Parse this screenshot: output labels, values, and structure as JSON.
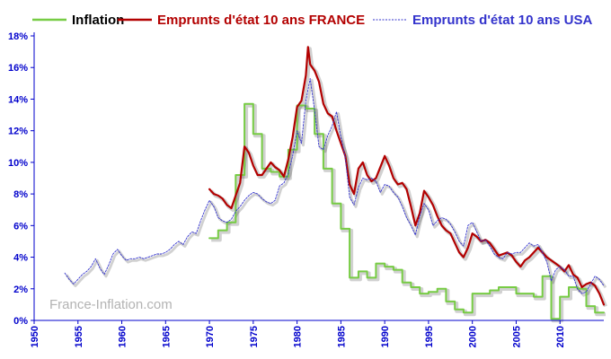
{
  "watermark": "France-Inflation.com",
  "chart_data": {
    "type": "line",
    "title": "",
    "xlabel": "",
    "ylabel": "",
    "xlim": [
      1950,
      2015
    ],
    "ylim": [
      0,
      18
    ],
    "grid": false,
    "legend_position": "top",
    "y_ticks": [
      0,
      2,
      4,
      6,
      8,
      10,
      12,
      14,
      16,
      18
    ],
    "y_tick_labels": [
      "0%",
      "2%",
      "4%",
      "6%",
      "8%",
      "10%",
      "12%",
      "14%",
      "16%",
      "18%"
    ],
    "x_ticks": [
      1950,
      1955,
      1960,
      1965,
      1970,
      1975,
      1980,
      1985,
      1990,
      1995,
      2000,
      2005,
      2010
    ],
    "x_tick_labels": [
      "1950",
      "1955",
      "1960",
      "1965",
      "1970",
      "1975",
      "1980",
      "1985",
      "1990",
      "1995",
      "2000",
      "2005",
      "2010"
    ],
    "colors": {
      "Inflation": "#77cc44",
      "Emprunts d'état 10 ans FRANCE": "#b30000",
      "Emprunts d'état 10 ans USA": "#3333cc",
      "axis": "#0000cc"
    },
    "series": [
      {
        "name": "Inflation",
        "style": "step",
        "x": [
          1970,
          1971,
          1972,
          1973,
          1974,
          1975,
          1976,
          1977,
          1978,
          1979,
          1980,
          1981,
          1982,
          1983,
          1984,
          1985,
          1986,
          1987,
          1988,
          1989,
          1990,
          1991,
          1992,
          1993,
          1994,
          1995,
          1996,
          1997,
          1998,
          1999,
          2000,
          2001,
          2002,
          2003,
          2004,
          2005,
          2006,
          2007,
          2008,
          2009,
          2010,
          2011,
          2012,
          2013,
          2014,
          2015
        ],
        "values": [
          5.2,
          5.7,
          6.2,
          9.2,
          13.7,
          11.8,
          9.6,
          9.4,
          9.1,
          10.8,
          13.6,
          13.4,
          11.8,
          9.6,
          7.4,
          5.8,
          2.7,
          3.1,
          2.7,
          3.6,
          3.4,
          3.2,
          2.4,
          2.1,
          1.7,
          1.8,
          2.0,
          1.2,
          0.7,
          0.5,
          1.7,
          1.7,
          1.9,
          2.1,
          2.1,
          1.7,
          1.7,
          1.5,
          2.8,
          0.1,
          1.5,
          2.1,
          2.0,
          0.9,
          0.5,
          0.5
        ]
      },
      {
        "name": "Emprunts d'état 10 ans FRANCE",
        "style": "line",
        "x": [
          1970,
          1970.5,
          1971,
          1971.5,
          1972,
          1972.5,
          1973,
          1973.5,
          1974,
          1974.5,
          1975,
          1975.5,
          1976,
          1976.5,
          1977,
          1977.5,
          1978,
          1978.5,
          1979,
          1979.5,
          1980,
          1980.5,
          1981,
          1981.25,
          1981.5,
          1982,
          1982.5,
          1983,
          1983.5,
          1984,
          1984.5,
          1985,
          1985.5,
          1986,
          1986.5,
          1987,
          1987.5,
          1988,
          1988.5,
          1989,
          1989.5,
          1990,
          1990.5,
          1991,
          1991.5,
          1992,
          1992.5,
          1993,
          1993.5,
          1994,
          1994.5,
          1995,
          1995.5,
          1996,
          1996.5,
          1997,
          1997.5,
          1998,
          1998.5,
          1999,
          1999.5,
          2000,
          2000.5,
          2001,
          2001.5,
          2002,
          2002.5,
          2003,
          2003.5,
          2004,
          2004.5,
          2005,
          2005.5,
          2006,
          2006.5,
          2007,
          2007.5,
          2008,
          2008.5,
          2009,
          2009.5,
          2010,
          2010.5,
          2011,
          2011.5,
          2012,
          2012.5,
          2013,
          2013.5,
          2014,
          2014.5,
          2015
        ],
        "values": [
          8.3,
          8.0,
          7.9,
          7.7,
          7.3,
          7.1,
          7.9,
          8.7,
          11.0,
          10.6,
          9.8,
          9.2,
          9.2,
          9.6,
          10.0,
          9.7,
          9.5,
          9.1,
          10.2,
          11.6,
          13.5,
          13.9,
          15.5,
          17.3,
          16.2,
          15.8,
          15.1,
          13.7,
          13.1,
          12.9,
          12.0,
          11.2,
          10.4,
          8.6,
          8.0,
          9.6,
          10.0,
          9.2,
          8.8,
          9.0,
          9.7,
          10.4,
          9.8,
          9.0,
          8.6,
          8.7,
          8.3,
          7.2,
          6.0,
          6.8,
          8.2,
          7.8,
          7.3,
          6.6,
          6.0,
          5.7,
          5.5,
          4.9,
          4.3,
          4.0,
          4.6,
          5.5,
          5.3,
          5.0,
          5.1,
          4.9,
          4.5,
          4.1,
          4.2,
          4.3,
          4.1,
          3.7,
          3.4,
          3.8,
          4.0,
          4.3,
          4.6,
          4.3,
          4.0,
          3.8,
          3.6,
          3.4,
          3.1,
          3.5,
          2.9,
          2.7,
          2.1,
          2.3,
          2.4,
          2.2,
          1.7,
          1.0
        ]
      },
      {
        "name": "Emprunts d'état 10 ans USA",
        "style": "dashed",
        "x": [
          1953.5,
          1954,
          1954.5,
          1955,
          1955.5,
          1956,
          1956.5,
          1957,
          1957.5,
          1958,
          1958.5,
          1959,
          1959.5,
          1960,
          1960.5,
          1961,
          1961.5,
          1962,
          1962.5,
          1963,
          1963.5,
          1964,
          1964.5,
          1965,
          1965.5,
          1966,
          1966.5,
          1967,
          1967.5,
          1968,
          1968.5,
          1969,
          1969.5,
          1970,
          1970.5,
          1971,
          1971.5,
          1972,
          1972.5,
          1973,
          1973.5,
          1974,
          1974.5,
          1975,
          1975.5,
          1976,
          1976.5,
          1977,
          1977.5,
          1978,
          1978.5,
          1979,
          1979.5,
          1980,
          1980.5,
          1981,
          1981.5,
          1982,
          1982.5,
          1983,
          1983.5,
          1984,
          1984.5,
          1985,
          1985.5,
          1986,
          1986.5,
          1987,
          1987.5,
          1988,
          1988.5,
          1989,
          1989.5,
          1990,
          1990.5,
          1991,
          1991.5,
          1992,
          1992.5,
          1993,
          1993.5,
          1994,
          1994.5,
          1995,
          1995.5,
          1996,
          1996.5,
          1997,
          1997.5,
          1998,
          1998.5,
          1999,
          1999.5,
          2000,
          2000.5,
          2001,
          2001.5,
          2002,
          2002.5,
          2003,
          2003.5,
          2004,
          2004.5,
          2005,
          2005.5,
          2006,
          2006.5,
          2007,
          2007.5,
          2008,
          2008.5,
          2009,
          2009.5,
          2010,
          2010.5,
          2011,
          2011.5,
          2012,
          2012.5,
          2013,
          2013.5,
          2014,
          2014.5,
          2015
        ],
        "values": [
          3.0,
          2.6,
          2.3,
          2.6,
          2.9,
          3.1,
          3.4,
          3.9,
          3.3,
          2.9,
          3.5,
          4.2,
          4.5,
          4.1,
          3.8,
          3.9,
          3.9,
          4.0,
          3.9,
          4.0,
          4.1,
          4.2,
          4.2,
          4.3,
          4.5,
          4.8,
          5.0,
          4.8,
          5.3,
          5.6,
          5.5,
          6.3,
          7.0,
          7.6,
          7.2,
          6.5,
          6.3,
          6.2,
          6.4,
          6.9,
          7.2,
          7.6,
          7.9,
          8.1,
          8.0,
          7.7,
          7.5,
          7.4,
          7.6,
          8.5,
          8.7,
          9.3,
          10.4,
          12.0,
          11.2,
          13.9,
          15.3,
          13.3,
          11.0,
          10.8,
          11.7,
          12.3,
          13.2,
          11.6,
          10.3,
          7.8,
          7.3,
          8.4,
          9.0,
          8.9,
          9.0,
          8.8,
          8.1,
          8.6,
          8.5,
          8.1,
          7.8,
          7.2,
          6.5,
          6.0,
          5.4,
          6.6,
          7.4,
          7.0,
          6.0,
          6.3,
          6.5,
          6.4,
          6.1,
          5.6,
          5.0,
          4.7,
          6.0,
          6.2,
          5.6,
          5.0,
          5.1,
          4.7,
          4.2,
          4.0,
          3.9,
          4.3,
          4.2,
          4.3,
          4.3,
          4.6,
          4.9,
          4.7,
          4.8,
          4.3,
          3.7,
          2.5,
          3.2,
          3.4,
          3.2,
          2.8,
          2.8,
          2.0,
          1.7,
          1.8,
          2.3,
          2.8,
          2.6,
          2.2
        ]
      }
    ]
  }
}
